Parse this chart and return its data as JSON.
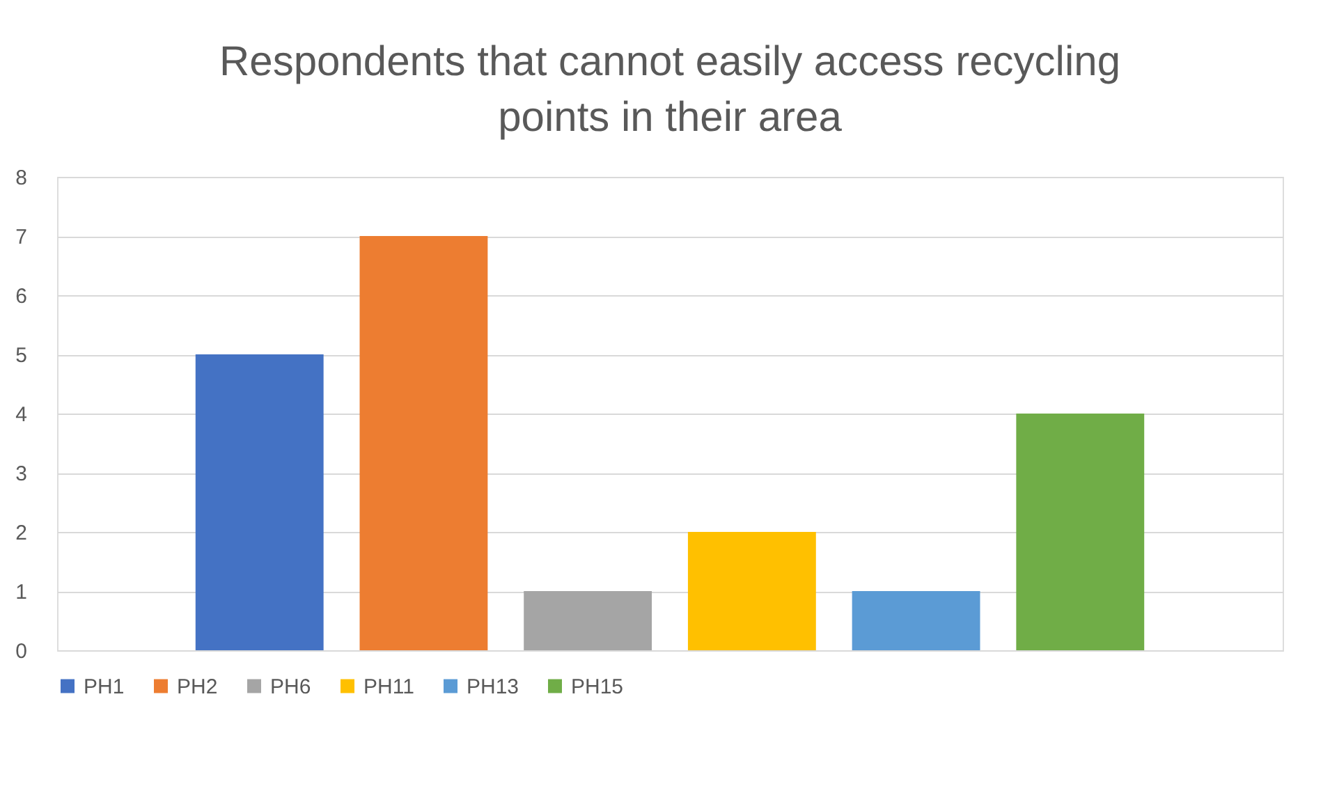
{
  "chart_data": {
    "type": "bar",
    "title": "Respondents that cannot easily access recycling points in their area",
    "categories": [
      null
    ],
    "series": [
      {
        "name": "PH1",
        "color": "#4472c4",
        "values": [
          5
        ]
      },
      {
        "name": "PH2",
        "color": "#ed7d31",
        "values": [
          7
        ]
      },
      {
        "name": "PH6",
        "color": "#a5a5a5",
        "values": [
          1
        ]
      },
      {
        "name": "PH11",
        "color": "#ffc000",
        "values": [
          2
        ]
      },
      {
        "name": "PH13",
        "color": "#5b9bd5",
        "values": [
          1
        ]
      },
      {
        "name": "PH15",
        "color": "#70ad47",
        "values": [
          4
        ]
      }
    ],
    "ylim": [
      0,
      8
    ],
    "yticks": [
      0,
      1,
      2,
      3,
      4,
      5,
      6,
      7,
      8
    ],
    "grid": "y",
    "legend": "bottom",
    "tick_labels": "y"
  }
}
